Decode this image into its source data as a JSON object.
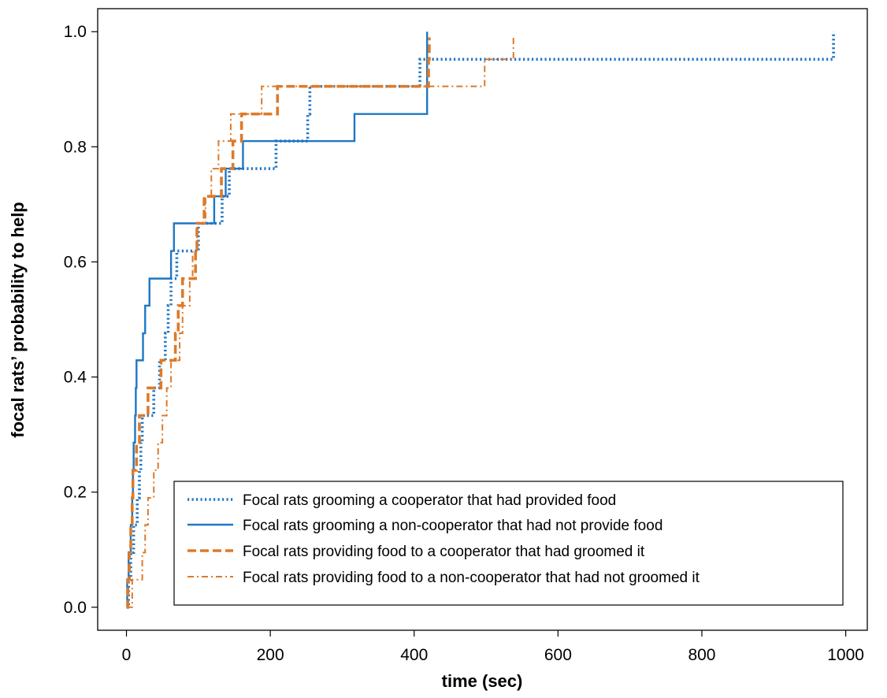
{
  "chart_data": {
    "type": "line",
    "step": true,
    "xlabel": "time (sec)",
    "ylabel": "focal rats’ probability to help",
    "xlim": [
      -40,
      1030
    ],
    "ylim": [
      -0.04,
      1.04
    ],
    "xticks": [
      0,
      200,
      400,
      600,
      800,
      1000
    ],
    "xtick_labels": [
      "0",
      "200",
      "400",
      "600",
      "800",
      "1000"
    ],
    "yticks": [
      0.0,
      0.2,
      0.4,
      0.6,
      0.8,
      1.0
    ],
    "ytick_labels": [
      "0.0",
      "0.2",
      "0.4",
      "0.6",
      "0.8",
      "1.0"
    ],
    "grid": false,
    "legend_position": "bottom-right",
    "series": [
      {
        "name": "Focal rats grooming a cooperator that had provided food",
        "color": "#1f77c4",
        "style": "dotted",
        "points": [
          [
            0,
            0.0
          ],
          [
            3,
            0.048
          ],
          [
            6,
            0.095
          ],
          [
            10,
            0.143
          ],
          [
            15,
            0.19
          ],
          [
            18,
            0.238
          ],
          [
            20,
            0.286
          ],
          [
            22,
            0.333
          ],
          [
            38,
            0.381
          ],
          [
            46,
            0.429
          ],
          [
            54,
            0.476
          ],
          [
            58,
            0.524
          ],
          [
            62,
            0.571
          ],
          [
            70,
            0.619
          ],
          [
            100,
            0.667
          ],
          [
            133,
            0.714
          ],
          [
            143,
            0.762
          ],
          [
            208,
            0.81
          ],
          [
            252,
            0.857
          ],
          [
            255,
            0.905
          ],
          [
            408,
            0.952
          ],
          [
            983,
            1.0
          ]
        ]
      },
      {
        "name": "Focal rats grooming a non-cooperator that had not provide food",
        "color": "#1f77c4",
        "style": "solid",
        "points": [
          [
            0,
            0.0
          ],
          [
            1,
            0.048
          ],
          [
            3,
            0.095
          ],
          [
            6,
            0.143
          ],
          [
            8,
            0.19
          ],
          [
            9,
            0.238
          ],
          [
            10,
            0.286
          ],
          [
            12,
            0.333
          ],
          [
            13,
            0.381
          ],
          [
            14,
            0.429
          ],
          [
            23,
            0.476
          ],
          [
            26,
            0.524
          ],
          [
            32,
            0.571
          ],
          [
            62,
            0.619
          ],
          [
            66,
            0.667
          ],
          [
            122,
            0.714
          ],
          [
            138,
            0.762
          ],
          [
            162,
            0.81
          ],
          [
            317,
            0.857
          ],
          [
            418,
            1.0
          ]
        ]
      },
      {
        "name": "Focal rats providing food to a cooperator that had groomed it",
        "color": "#dd7a2a",
        "style": "dashed",
        "points": [
          [
            0,
            0.0
          ],
          [
            2,
            0.048
          ],
          [
            4,
            0.095
          ],
          [
            6,
            0.143
          ],
          [
            8,
            0.19
          ],
          [
            9,
            0.238
          ],
          [
            14,
            0.286
          ],
          [
            18,
            0.333
          ],
          [
            30,
            0.381
          ],
          [
            48,
            0.429
          ],
          [
            68,
            0.476
          ],
          [
            72,
            0.524
          ],
          [
            78,
            0.571
          ],
          [
            96,
            0.619
          ],
          [
            98,
            0.667
          ],
          [
            108,
            0.714
          ],
          [
            132,
            0.762
          ],
          [
            148,
            0.81
          ],
          [
            160,
            0.857
          ],
          [
            210,
            0.905
          ],
          [
            420,
            0.952
          ],
          [
            421,
            0.99
          ]
        ]
      },
      {
        "name": "Focal rats providing food to a non-cooperator that had not groomed it",
        "color": "#dd7a2a",
        "style": "dashdot",
        "points": [
          [
            0,
            0.0
          ],
          [
            8,
            0.048
          ],
          [
            22,
            0.095
          ],
          [
            26,
            0.143
          ],
          [
            30,
            0.19
          ],
          [
            38,
            0.238
          ],
          [
            44,
            0.286
          ],
          [
            50,
            0.333
          ],
          [
            56,
            0.381
          ],
          [
            62,
            0.429
          ],
          [
            74,
            0.476
          ],
          [
            78,
            0.524
          ],
          [
            88,
            0.571
          ],
          [
            92,
            0.619
          ],
          [
            98,
            0.667
          ],
          [
            110,
            0.714
          ],
          [
            118,
            0.762
          ],
          [
            128,
            0.81
          ],
          [
            145,
            0.857
          ],
          [
            188,
            0.905
          ],
          [
            362,
            0.905
          ],
          [
            498,
            0.952
          ],
          [
            538,
            0.99
          ]
        ]
      }
    ]
  }
}
